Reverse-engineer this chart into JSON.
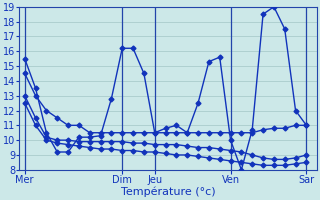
{
  "background_color": "#cce8e8",
  "grid_color": "#aacccc",
  "line_color": "#1133bb",
  "xlabel": "Température (°c)",
  "ylim": [
    8,
    19
  ],
  "yticks": [
    8,
    9,
    10,
    11,
    12,
    13,
    14,
    15,
    16,
    17,
    18,
    19
  ],
  "day_labels": [
    "Mer",
    "Dim",
    "Jeu",
    "Ven",
    "Sar"
  ],
  "day_positions": [
    0,
    9,
    12,
    19,
    26
  ],
  "vline_positions": [
    0,
    9,
    12,
    19,
    26
  ],
  "xlim": [
    -0.5,
    27
  ],
  "s1_x": [
    0,
    1,
    2,
    3,
    4,
    5,
    6,
    7,
    8,
    9,
    10,
    11,
    12,
    13,
    14,
    15,
    16,
    17,
    18,
    19,
    20,
    21,
    22,
    23,
    24,
    25,
    26
  ],
  "s1_y": [
    15.5,
    13.5,
    10.5,
    9.2,
    9.2,
    10.2,
    10.2,
    10.3,
    12.8,
    16.2,
    16.2,
    14.5,
    10.5,
    10.8,
    11.0,
    10.5,
    12.5,
    15.3,
    15.6,
    10.0,
    8.0,
    10.7,
    18.5,
    19.0,
    17.5,
    12.0,
    11.0
  ],
  "s2_x": [
    0,
    1,
    2,
    3,
    4,
    5,
    6,
    7,
    8,
    9,
    10,
    11,
    12,
    13,
    14,
    15,
    16,
    17,
    18,
    19,
    20,
    21,
    22,
    23,
    24,
    25,
    26
  ],
  "s2_y": [
    14.5,
    13.0,
    12.0,
    11.5,
    11.0,
    11.0,
    10.5,
    10.5,
    10.5,
    10.5,
    10.5,
    10.5,
    10.5,
    10.5,
    10.5,
    10.5,
    10.5,
    10.5,
    10.5,
    10.5,
    10.5,
    10.5,
    10.7,
    10.8,
    10.8,
    11.0,
    11.0
  ],
  "s3_x": [
    0,
    1,
    2,
    3,
    4,
    5,
    6,
    7,
    8,
    9,
    10,
    11,
    12,
    13,
    14,
    15,
    16,
    17,
    18,
    19,
    20,
    21,
    22,
    23,
    24,
    25,
    26
  ],
  "s3_y": [
    13.0,
    11.5,
    10.2,
    10.0,
    10.0,
    9.9,
    9.9,
    9.9,
    9.9,
    9.9,
    9.8,
    9.8,
    9.7,
    9.7,
    9.7,
    9.6,
    9.5,
    9.5,
    9.4,
    9.3,
    9.2,
    9.0,
    8.8,
    8.7,
    8.7,
    8.8,
    9.0
  ],
  "s4_x": [
    0,
    1,
    2,
    3,
    4,
    5,
    6,
    7,
    8,
    9,
    10,
    11,
    12,
    13,
    14,
    15,
    16,
    17,
    18,
    19,
    20,
    21,
    22,
    23,
    24,
    25,
    26
  ],
  "s4_y": [
    12.5,
    11.0,
    10.0,
    9.8,
    9.7,
    9.6,
    9.5,
    9.4,
    9.4,
    9.3,
    9.3,
    9.2,
    9.2,
    9.1,
    9.0,
    9.0,
    8.9,
    8.8,
    8.7,
    8.6,
    8.5,
    8.4,
    8.3,
    8.3,
    8.3,
    8.4,
    8.5
  ]
}
